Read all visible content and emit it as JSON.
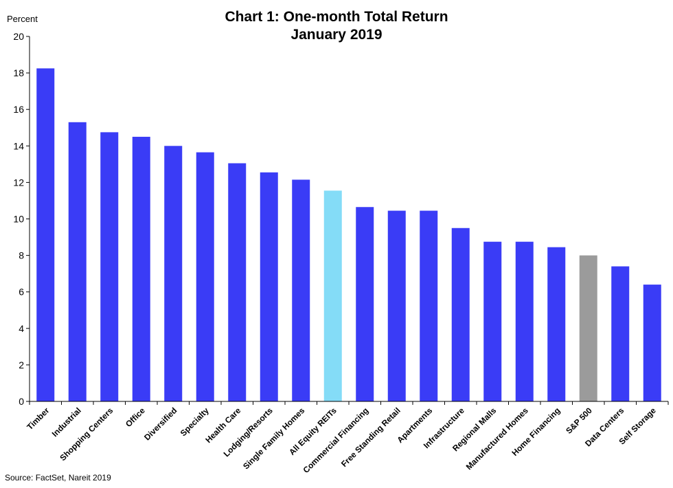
{
  "chart_data": {
    "type": "bar",
    "title": "Chart 1: One-month Total Return",
    "subtitle": "January 2019",
    "ylabel": "Percent",
    "xlabel": "",
    "ylim": [
      0,
      20
    ],
    "yticks": [
      0,
      2,
      4,
      6,
      8,
      10,
      12,
      14,
      16,
      18,
      20
    ],
    "grid": false,
    "legend": "none",
    "categories": [
      "Timber",
      "Industrial",
      "Shopping Centers",
      "Office",
      "Diversified",
      "Specialty",
      "Health Care",
      "Lodging/Resorts",
      "Single Family Homes",
      "All Equity REITs",
      "Commercial Financing",
      "Free Standing Retail",
      "Apartments",
      "Infrastructure",
      "Regional Malls",
      "Manufactured Homes",
      "Home Financing",
      "S&P 500",
      "Data Centers",
      "Self Storage"
    ],
    "values": [
      18.25,
      15.3,
      14.75,
      14.5,
      14.0,
      13.65,
      13.05,
      12.55,
      12.15,
      11.55,
      10.65,
      10.45,
      10.45,
      9.5,
      8.75,
      8.75,
      8.45,
      8.0,
      7.4,
      6.4
    ],
    "bar_colors": [
      "#3a3cf6",
      "#3a3cf6",
      "#3a3cf6",
      "#3a3cf6",
      "#3a3cf6",
      "#3a3cf6",
      "#3a3cf6",
      "#3a3cf6",
      "#3a3cf6",
      "#84dcf7",
      "#3a3cf6",
      "#3a3cf6",
      "#3a3cf6",
      "#3a3cf6",
      "#3a3cf6",
      "#3a3cf6",
      "#3a3cf6",
      "#9b9b9b",
      "#3a3cf6",
      "#3a3cf6"
    ]
  },
  "source": "Source: FactSet, Nareit 2019"
}
